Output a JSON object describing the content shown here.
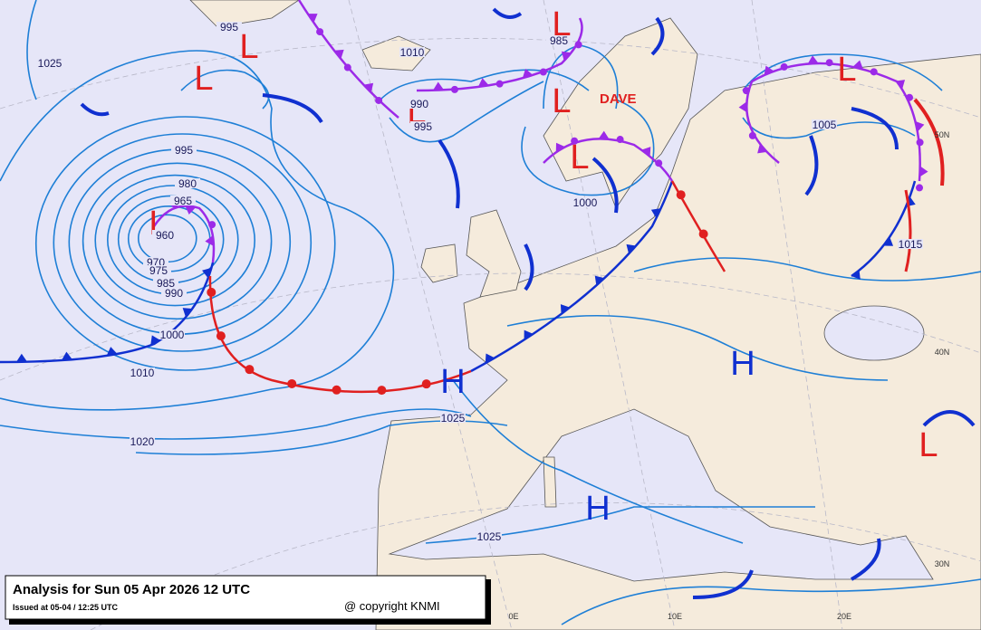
{
  "title": "Analysis for Sun 05 Apr 2026 12 UTC",
  "issued": "Issued at 05-04 / 12:25 UTC",
  "copyright": "@ copyright KNMI",
  "storm_name": "DAVE",
  "pressure_centers": [
    "L",
    "L",
    "L",
    "L",
    "L",
    "L",
    "L",
    "L",
    "L",
    "H",
    "H",
    "H"
  ],
  "isobar_labels": [
    "995",
    "1025",
    "1010",
    "985",
    "990",
    "995",
    "1005",
    "995",
    "980",
    "965",
    "960",
    "970",
    "975",
    "985",
    "990",
    "1000",
    "1010",
    "1020",
    "1025",
    "1025",
    "1015",
    "1000"
  ],
  "graticule_labels": [
    "50N",
    "40N",
    "30N",
    "0E",
    "10E",
    "20E"
  ]
}
